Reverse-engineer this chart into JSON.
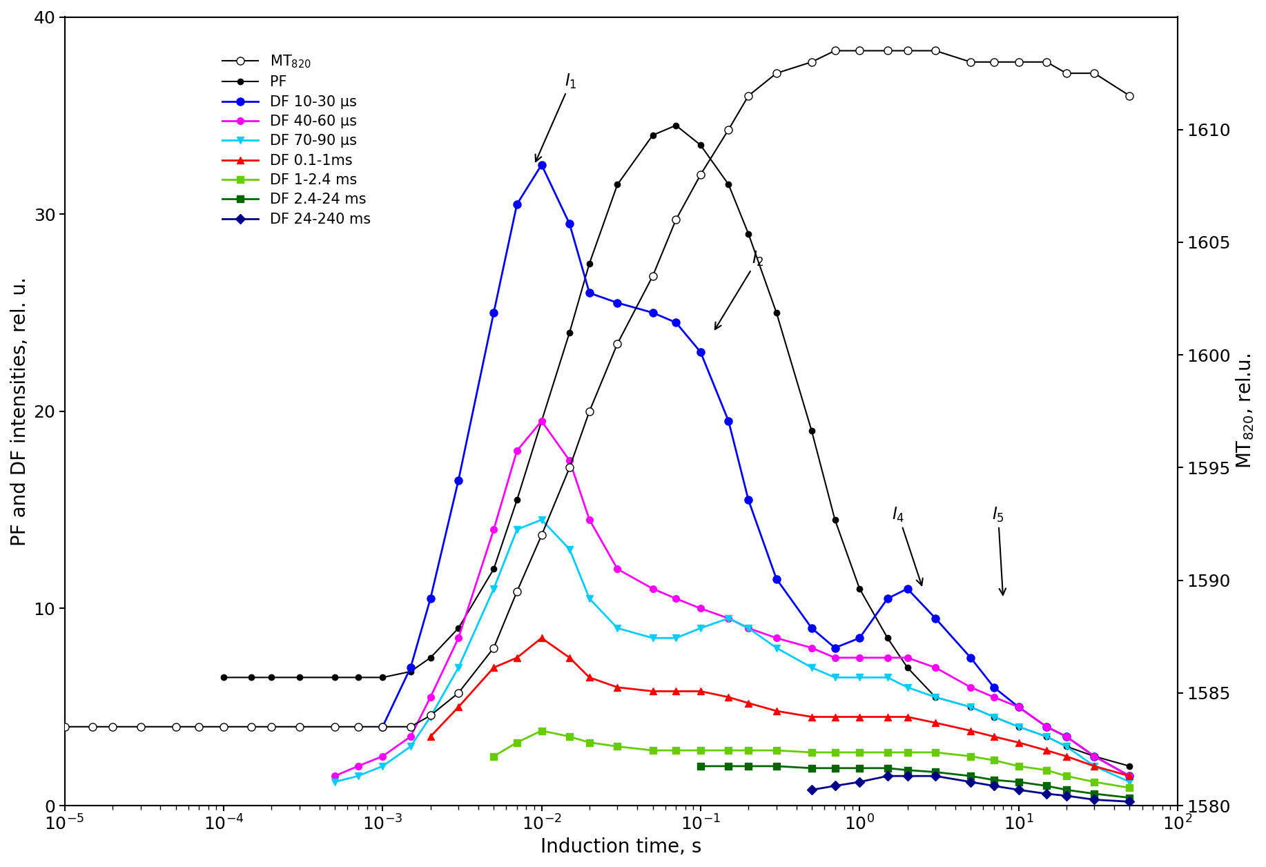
{
  "xlabel": "Induction time, s",
  "ylabel_left": "PF and DF intensities, rel. u.",
  "ylabel_right": "MT$_{820}$, rel.u.",
  "xlim": [
    1e-05,
    100.0
  ],
  "ylim_left": [
    0,
    40
  ],
  "ylim_right": [
    1580,
    1615
  ],
  "annotation_fontsize": 17,
  "label_fontsize": 20,
  "tick_fontsize": 18,
  "legend_fontsize": 15,
  "series": {
    "MT820": {
      "label": "MT$_{820}$",
      "color": "black",
      "marker": "o",
      "marker_fill": "white",
      "linewidth": 1.5,
      "markersize": 8,
      "x": [
        1e-05,
        1.5e-05,
        2e-05,
        3e-05,
        5e-05,
        7e-05,
        0.0001,
        0.00015,
        0.0002,
        0.0003,
        0.0005,
        0.0007,
        0.001,
        0.0015,
        0.002,
        0.003,
        0.005,
        0.007,
        0.01,
        0.015,
        0.02,
        0.03,
        0.05,
        0.07,
        0.1,
        0.15,
        0.2,
        0.3,
        0.5,
        0.7,
        1.0,
        1.5,
        2.0,
        3.0,
        5.0,
        7.0,
        10.0,
        15.0,
        20.0,
        30.0,
        50.0
      ],
      "y": [
        1583.5,
        1583.5,
        1583.5,
        1583.5,
        1583.5,
        1583.5,
        1583.5,
        1583.5,
        1583.5,
        1583.5,
        1583.5,
        1583.5,
        1583.5,
        1583.5,
        1584.0,
        1585.0,
        1587.0,
        1589.5,
        1592.0,
        1595.0,
        1597.5,
        1600.5,
        1603.5,
        1606.0,
        1608.0,
        1610.0,
        1611.5,
        1612.5,
        1613.0,
        1613.5,
        1613.5,
        1613.5,
        1613.5,
        1613.5,
        1613.0,
        1613.0,
        1613.0,
        1613.0,
        1612.5,
        1612.5,
        1611.5
      ]
    },
    "PF": {
      "label": "PF",
      "color": "black",
      "marker": "o",
      "marker_fill": "black",
      "linewidth": 1.5,
      "markersize": 6,
      "x": [
        0.0001,
        0.00015,
        0.0002,
        0.0003,
        0.0005,
        0.0007,
        0.001,
        0.0015,
        0.002,
        0.003,
        0.005,
        0.007,
        0.01,
        0.015,
        0.02,
        0.03,
        0.05,
        0.07,
        0.1,
        0.15,
        0.2,
        0.3,
        0.5,
        0.7,
        1.0,
        1.5,
        2.0,
        3.0,
        5.0,
        7.0,
        10.0,
        15.0,
        20.0,
        30.0,
        50.0
      ],
      "y": [
        6.5,
        6.5,
        6.5,
        6.5,
        6.5,
        6.5,
        6.5,
        6.8,
        7.5,
        9.0,
        12.0,
        15.5,
        19.5,
        24.0,
        27.5,
        31.5,
        34.0,
        34.5,
        33.5,
        31.5,
        29.0,
        25.0,
        19.0,
        14.5,
        11.0,
        8.5,
        7.0,
        5.5,
        5.0,
        4.5,
        4.0,
        3.5,
        3.0,
        2.5,
        2.0
      ]
    },
    "DF_10_30": {
      "label": "DF 10-30 μs",
      "color": "#0000ff",
      "marker": "o",
      "marker_fill": "#0000ff",
      "linewidth": 2.0,
      "markersize": 8,
      "x": [
        0.001,
        0.0015,
        0.002,
        0.003,
        0.005,
        0.007,
        0.01,
        0.015,
        0.02,
        0.03,
        0.05,
        0.07,
        0.1,
        0.15,
        0.2,
        0.3,
        0.5,
        0.7,
        1.0,
        1.5,
        2.0,
        3.0,
        5.0,
        7.0,
        10.0,
        15.0,
        20.0,
        30.0,
        50.0
      ],
      "y": [
        4.0,
        7.0,
        10.5,
        16.5,
        25.0,
        30.5,
        32.5,
        29.5,
        26.0,
        25.5,
        25.0,
        24.5,
        23.0,
        19.5,
        15.5,
        11.5,
        9.0,
        8.0,
        8.5,
        10.5,
        11.0,
        9.5,
        7.5,
        6.0,
        5.0,
        4.0,
        3.5,
        2.5,
        1.5
      ]
    },
    "DF_40_60": {
      "label": "DF 40-60 μs",
      "color": "#ff00ff",
      "marker": "o",
      "marker_fill": "#ff00ff",
      "linewidth": 2.0,
      "markersize": 7,
      "x": [
        0.0005,
        0.0007,
        0.001,
        0.0015,
        0.002,
        0.003,
        0.005,
        0.007,
        0.01,
        0.015,
        0.02,
        0.03,
        0.05,
        0.07,
        0.1,
        0.15,
        0.2,
        0.3,
        0.5,
        0.7,
        1.0,
        1.5,
        2.0,
        3.0,
        5.0,
        7.0,
        10.0,
        15.0,
        20.0,
        30.0,
        50.0
      ],
      "y": [
        1.5,
        2.0,
        2.5,
        3.5,
        5.5,
        8.5,
        14.0,
        18.0,
        19.5,
        17.5,
        14.5,
        12.0,
        11.0,
        10.5,
        10.0,
        9.5,
        9.0,
        8.5,
        8.0,
        7.5,
        7.5,
        7.5,
        7.5,
        7.0,
        6.0,
        5.5,
        5.0,
        4.0,
        3.5,
        2.5,
        1.5
      ]
    },
    "DF_70_90": {
      "label": "DF 70-90 μs",
      "color": "#00ccff",
      "marker": "v",
      "marker_fill": "#00ccff",
      "linewidth": 2.0,
      "markersize": 7,
      "x": [
        0.0005,
        0.0007,
        0.001,
        0.0015,
        0.002,
        0.003,
        0.005,
        0.007,
        0.01,
        0.015,
        0.02,
        0.03,
        0.05,
        0.07,
        0.1,
        0.15,
        0.2,
        0.3,
        0.5,
        0.7,
        1.0,
        1.5,
        2.0,
        3.0,
        5.0,
        7.0,
        10.0,
        15.0,
        20.0,
        30.0,
        50.0
      ],
      "y": [
        1.2,
        1.5,
        2.0,
        3.0,
        4.5,
        7.0,
        11.0,
        14.0,
        14.5,
        13.0,
        10.5,
        9.0,
        8.5,
        8.5,
        9.0,
        9.5,
        9.0,
        8.0,
        7.0,
        6.5,
        6.5,
        6.5,
        6.0,
        5.5,
        5.0,
        4.5,
        4.0,
        3.5,
        3.0,
        2.0,
        1.2
      ]
    },
    "DF_0_1_1ms": {
      "label": "DF 0.1-1ms",
      "color": "#ff0000",
      "marker": "^",
      "marker_fill": "#ff0000",
      "linewidth": 2.0,
      "markersize": 7,
      "x": [
        0.002,
        0.003,
        0.005,
        0.007,
        0.01,
        0.015,
        0.02,
        0.03,
        0.05,
        0.07,
        0.1,
        0.15,
        0.2,
        0.3,
        0.5,
        0.7,
        1.0,
        1.5,
        2.0,
        3.0,
        5.0,
        7.0,
        10.0,
        15.0,
        20.0,
        30.0,
        50.0
      ],
      "y": [
        3.5,
        5.0,
        7.0,
        7.5,
        8.5,
        7.5,
        6.5,
        6.0,
        5.8,
        5.8,
        5.8,
        5.5,
        5.2,
        4.8,
        4.5,
        4.5,
        4.5,
        4.5,
        4.5,
        4.2,
        3.8,
        3.5,
        3.2,
        2.8,
        2.5,
        2.0,
        1.5
      ]
    },
    "DF_1_2_4ms": {
      "label": "DF 1-2.4 ms",
      "color": "#66cc00",
      "marker": "s",
      "marker_fill": "#66cc00",
      "linewidth": 2.0,
      "markersize": 7,
      "x": [
        0.005,
        0.007,
        0.01,
        0.015,
        0.02,
        0.03,
        0.05,
        0.07,
        0.1,
        0.15,
        0.2,
        0.3,
        0.5,
        0.7,
        1.0,
        1.5,
        2.0,
        3.0,
        5.0,
        7.0,
        10.0,
        15.0,
        20.0,
        30.0,
        50.0
      ],
      "y": [
        2.5,
        3.2,
        3.8,
        3.5,
        3.2,
        3.0,
        2.8,
        2.8,
        2.8,
        2.8,
        2.8,
        2.8,
        2.7,
        2.7,
        2.7,
        2.7,
        2.7,
        2.7,
        2.5,
        2.3,
        2.0,
        1.8,
        1.5,
        1.2,
        0.9
      ]
    },
    "DF_2_4_24ms": {
      "label": "DF 2.4-24 ms",
      "color": "#006600",
      "marker": "s",
      "marker_fill": "#006600",
      "linewidth": 2.0,
      "markersize": 7,
      "x": [
        0.1,
        0.15,
        0.2,
        0.3,
        0.5,
        0.7,
        1.0,
        1.5,
        2.0,
        3.0,
        5.0,
        7.0,
        10.0,
        15.0,
        20.0,
        30.0,
        50.0
      ],
      "y": [
        2.0,
        2.0,
        2.0,
        2.0,
        1.9,
        1.9,
        1.9,
        1.9,
        1.8,
        1.7,
        1.5,
        1.3,
        1.2,
        1.0,
        0.8,
        0.6,
        0.4
      ]
    },
    "DF_24_240ms": {
      "label": "DF 24-240 ms",
      "color": "#000088",
      "marker": "D",
      "marker_fill": "#000088",
      "linewidth": 2.0,
      "markersize": 7,
      "x": [
        0.5,
        0.7,
        1.0,
        1.5,
        2.0,
        3.0,
        5.0,
        7.0,
        10.0,
        15.0,
        20.0,
        30.0,
        50.0
      ],
      "y": [
        0.8,
        1.0,
        1.2,
        1.5,
        1.5,
        1.5,
        1.2,
        1.0,
        0.8,
        0.6,
        0.5,
        0.3,
        0.2
      ]
    }
  }
}
